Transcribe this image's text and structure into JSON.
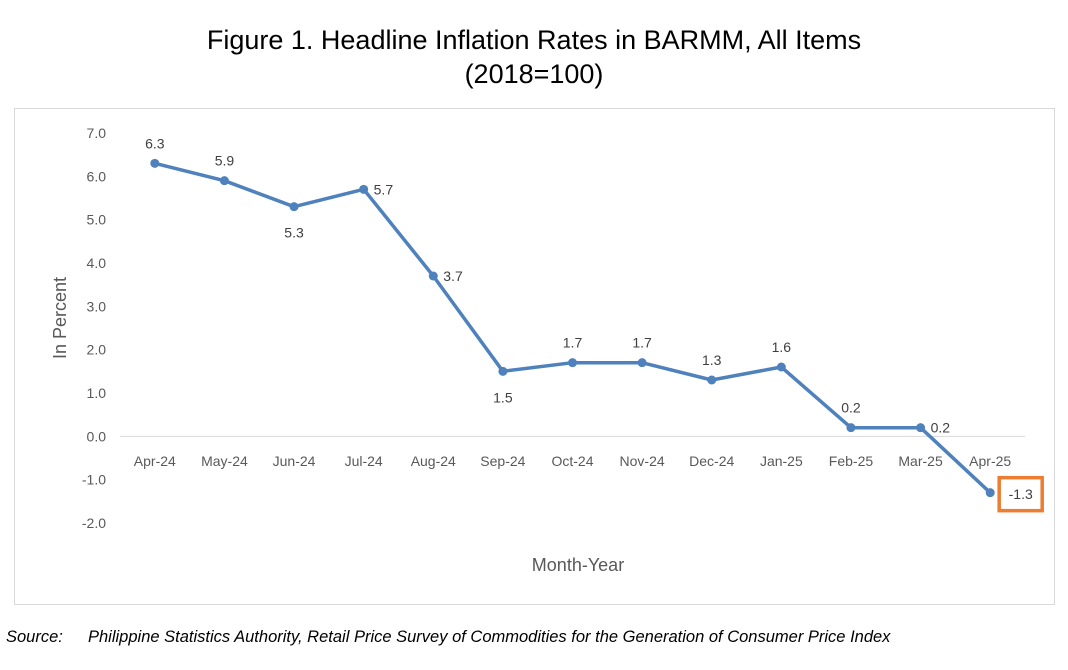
{
  "title_line1": "Figure 1. Headline Inflation Rates in BARMM, All Items",
  "title_line2": "(2018=100)",
  "source_label": "Source:",
  "source_text": "Philippine Statistics Authority, Retail Price Survey of Commodities for the Generation of Consumer Price Index",
  "chart_data": {
    "type": "line",
    "title": "Figure 1. Headline Inflation Rates in BARMM, All Items (2018=100)",
    "xlabel": "Month-Year",
    "ylabel": "In Percent",
    "categories": [
      "Apr-24",
      "May-24",
      "Jun-24",
      "Jul-24",
      "Aug-24",
      "Sep-24",
      "Oct-24",
      "Nov-24",
      "Dec-24",
      "Jan-25",
      "Feb-25",
      "Mar-25",
      "Apr-25"
    ],
    "values": [
      6.3,
      5.9,
      5.3,
      5.7,
      3.7,
      1.5,
      1.7,
      1.7,
      1.3,
      1.6,
      0.2,
      0.2,
      -1.3
    ],
    "data_labels": [
      "6.3",
      "5.9",
      "5.3",
      "5.7",
      "3.7",
      "1.5",
      "1.7",
      "1.7",
      "1.3",
      "1.6",
      "0.2",
      "0.2",
      "-1.3"
    ],
    "ylim": [
      -2.0,
      7.0
    ],
    "yticks": [
      "7.0",
      "6.0",
      "5.0",
      "4.0",
      "3.0",
      "2.0",
      "1.0",
      "0.0",
      "-1.0",
      "-2.0"
    ],
    "grid": false,
    "legend": false,
    "highlighted_point": "Apr-25",
    "colors": {
      "line": "#4F81BD",
      "highlight": "#ED7D31",
      "axis": "#D9D9D9",
      "text": "#595959"
    }
  }
}
